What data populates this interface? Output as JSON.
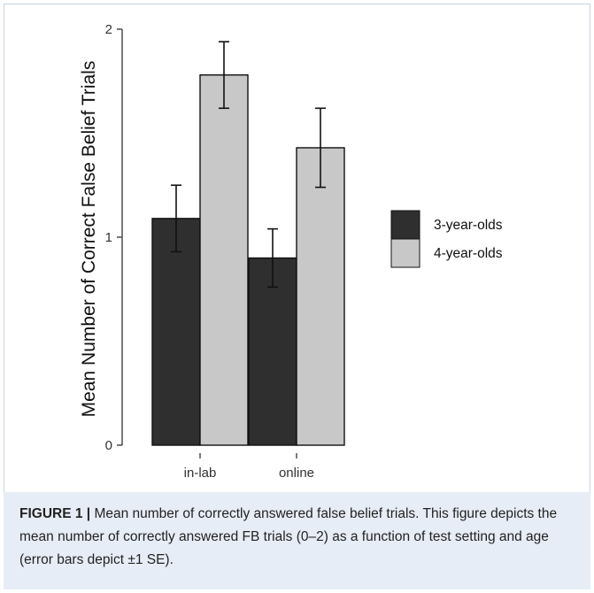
{
  "chart_data": {
    "type": "bar",
    "categories": [
      "in-lab",
      "online"
    ],
    "series": [
      {
        "name": "3-year-olds",
        "values": [
          1.09,
          0.9
        ],
        "errors": [
          0.16,
          0.14
        ],
        "color": "#2f2f2f"
      },
      {
        "name": "4-year-olds",
        "values": [
          1.78,
          1.43
        ],
        "errors": [
          0.16,
          0.19
        ],
        "color": "#c8c8c8"
      }
    ],
    "ylabel": "Mean Number of Correct False Belief Trials",
    "xlabel": "",
    "ylim": [
      0,
      2
    ],
    "yticks": [
      0,
      1,
      2
    ],
    "grid": false,
    "legend": "right"
  },
  "caption": {
    "label": "FIGURE 1 |",
    "text": "Mean number of correctly answered false belief trials. This figure depicts the mean number of correctly answered FB trials (0–2) as a function of test setting and age (error bars depict ±1 SE)."
  }
}
